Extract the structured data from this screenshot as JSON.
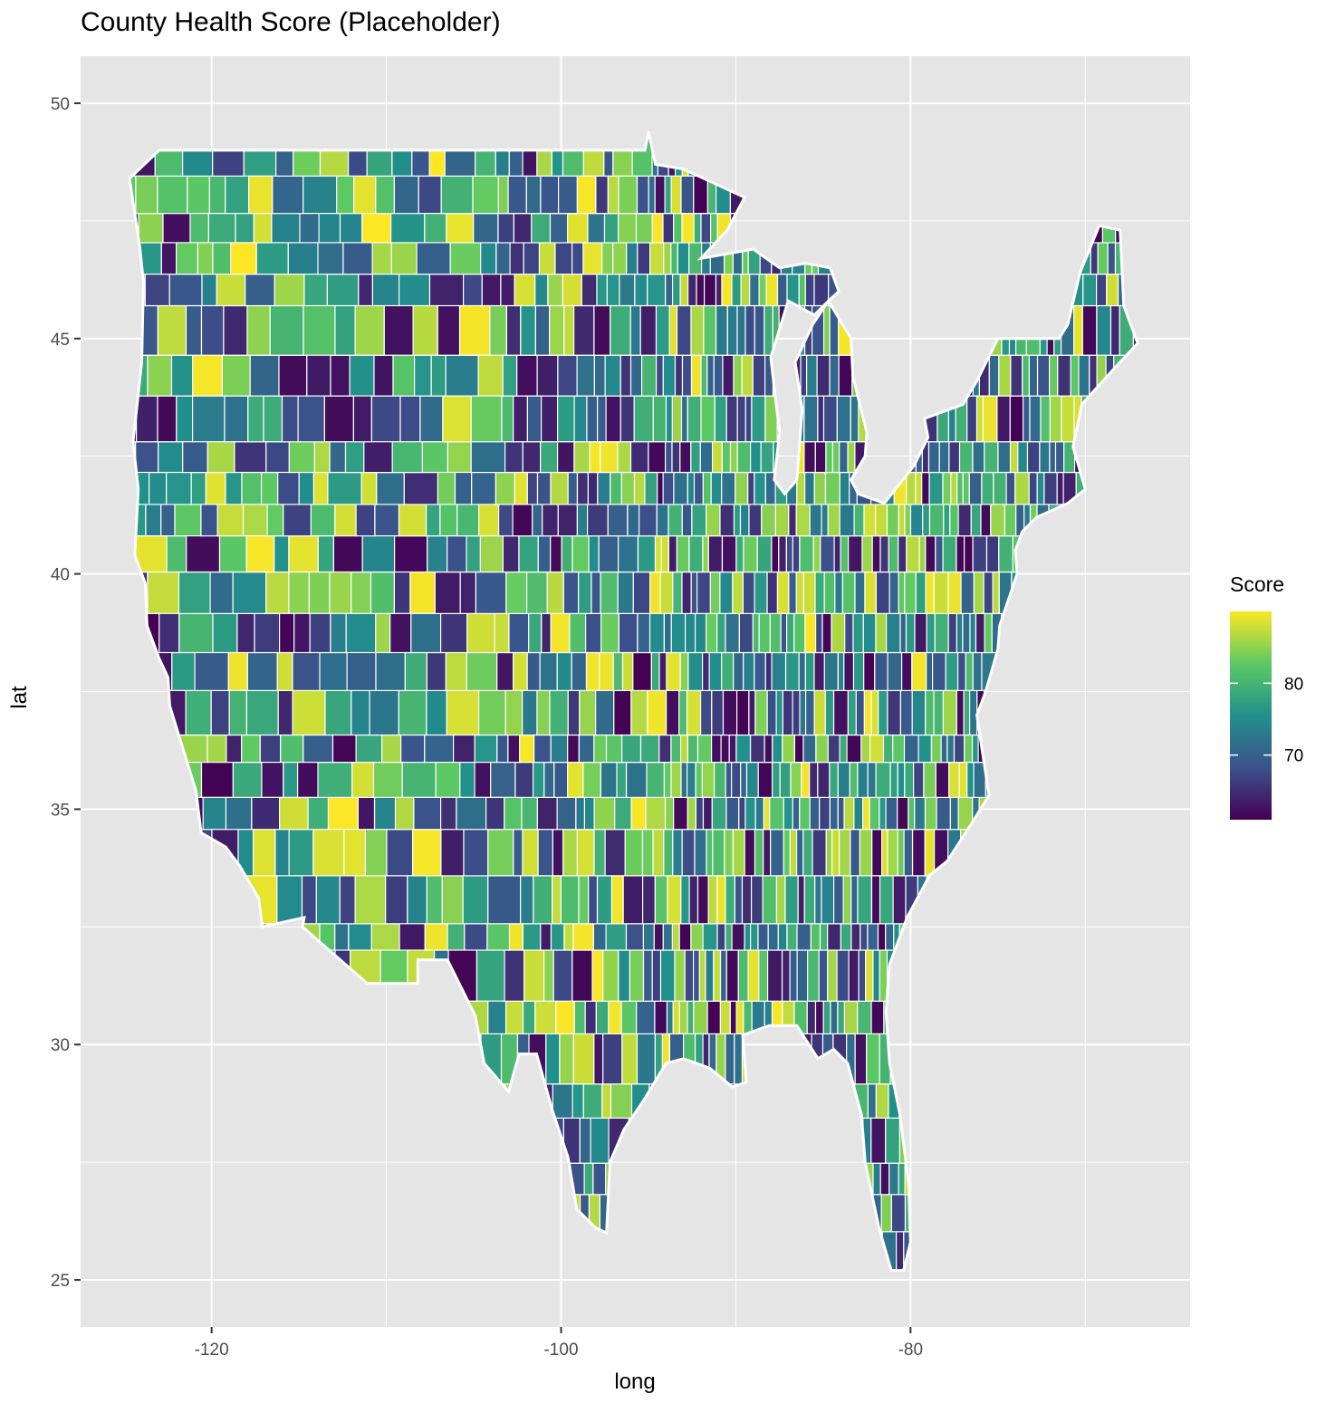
{
  "title": "County Health Score (Placeholder)",
  "x_axis": {
    "title": "long",
    "ticks": [
      -120,
      -100,
      -80
    ],
    "tick_labels": [
      "-120",
      "-100",
      "-80"
    ],
    "range": [
      -127.5,
      -64
    ]
  },
  "y_axis": {
    "title": "lat",
    "ticks": [
      25,
      30,
      35,
      40,
      45,
      50
    ],
    "tick_labels": [
      "25",
      "30",
      "35",
      "40",
      "45",
      "50"
    ],
    "range": [
      24,
      51
    ]
  },
  "legend": {
    "title": "Score",
    "ticks": [
      70,
      80
    ],
    "tick_labels": [
      "70",
      "80"
    ],
    "range": [
      61,
      90
    ],
    "colors": [
      "#440154",
      "#3b528b",
      "#21908c",
      "#5dc963",
      "#fde725"
    ]
  },
  "colors": {
    "panel": "#e5e5e5",
    "grid": "#ffffff",
    "county_border": "#ffffff"
  },
  "chart_data": {
    "type": "heatmap",
    "title": "County Health Score (Placeholder)",
    "xlabel": "long",
    "ylabel": "lat",
    "xlim": [
      -127.5,
      -64
    ],
    "ylim": [
      24,
      51
    ],
    "grid": true,
    "legend_placement": "right",
    "fill_variable": "Score",
    "color_scale": "viridis",
    "score_range": [
      61,
      90
    ],
    "note": "US counties filled with placeholder health scores; mosaic of values across the contiguous United States"
  }
}
